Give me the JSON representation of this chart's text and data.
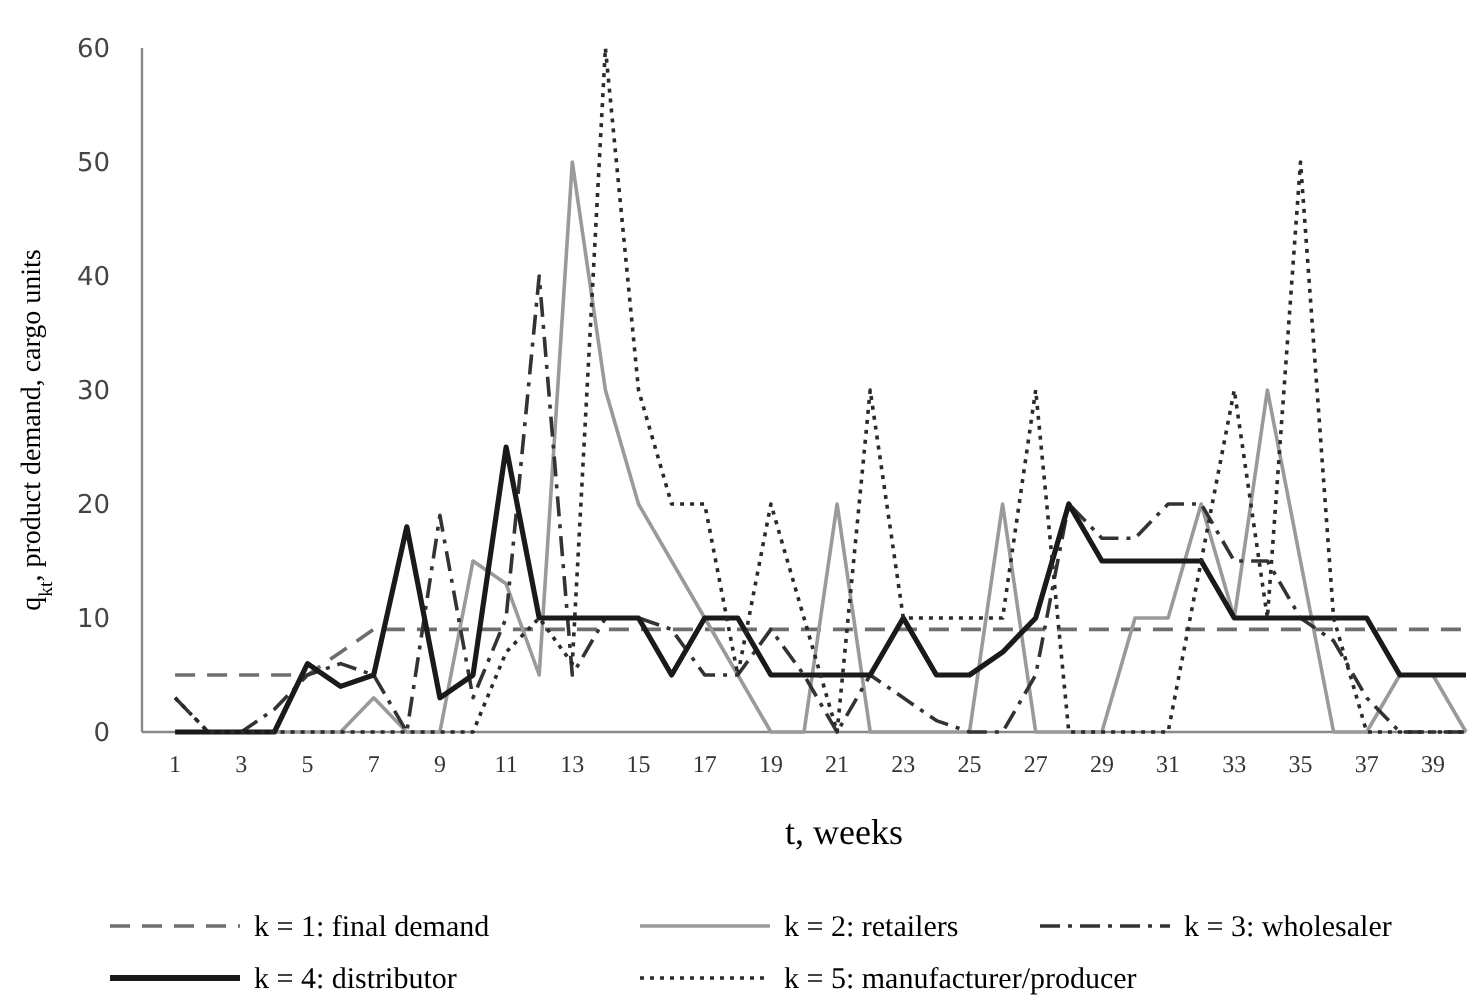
{
  "chart_data": {
    "type": "line",
    "xlabel": "t, weeks",
    "ylabel": "q$_{kt}$, product demand, cargo units",
    "x": [
      1,
      2,
      3,
      4,
      5,
      6,
      7,
      8,
      9,
      10,
      11,
      12,
      13,
      14,
      15,
      16,
      17,
      18,
      19,
      20,
      21,
      22,
      23,
      24,
      25,
      26,
      27,
      28,
      29,
      30,
      31,
      32,
      33,
      34,
      35,
      36,
      37,
      38,
      39,
      40
    ],
    "xlim": [
      0,
      40
    ],
    "xticks": [
      1,
      3,
      5,
      7,
      9,
      11,
      13,
      15,
      17,
      19,
      21,
      23,
      25,
      27,
      29,
      31,
      33,
      35,
      37,
      39
    ],
    "ylim": [
      0,
      60
    ],
    "yticks": [
      0,
      10,
      20,
      30,
      40,
      50,
      60
    ],
    "grid": false,
    "legend": "bottom",
    "marker": "none",
    "series": [
      {
        "name": "k = 1: final demand",
        "color": "#6e6e6e",
        "line_style": "dashed",
        "values": [
          5,
          5,
          5,
          5,
          5,
          7,
          9,
          9,
          9,
          9,
          9,
          9,
          9,
          9,
          9,
          9,
          9,
          9,
          9,
          9,
          9,
          9,
          9,
          9,
          9,
          9,
          9,
          9,
          9,
          9,
          9,
          9,
          9,
          9,
          9,
          9,
          9,
          9,
          9,
          9
        ]
      },
      {
        "name": "k = 2: retailers",
        "color": "#9a9a9a",
        "line_style": "solid",
        "values": [
          0,
          0,
          0,
          0,
          0,
          0,
          3,
          0,
          0,
          15,
          13,
          5,
          50,
          30,
          20,
          15,
          10,
          5,
          0,
          0,
          20,
          0,
          0,
          0,
          0,
          20,
          0,
          0,
          0,
          10,
          10,
          20,
          10,
          30,
          15,
          0,
          0,
          5,
          5,
          0
        ]
      },
      {
        "name": "k = 3: wholesaler",
        "color": "#333333",
        "line_style": "dashdot",
        "values": [
          3,
          0,
          0,
          2,
          5,
          6,
          5,
          0,
          19,
          3,
          10,
          40,
          5,
          10,
          10,
          9,
          5,
          5,
          9,
          5,
          0,
          5,
          3,
          1,
          0,
          0,
          5,
          20,
          17,
          17,
          20,
          20,
          15,
          15,
          10,
          8,
          3,
          0,
          0,
          0
        ]
      },
      {
        "name": "k = 4: distributor",
        "color": "#1a1a1a",
        "line_style": "solid",
        "values": [
          0,
          0,
          0,
          0,
          6,
          4,
          5,
          18,
          3,
          5,
          25,
          10,
          10,
          10,
          10,
          5,
          10,
          10,
          5,
          5,
          5,
          5,
          10,
          5,
          5,
          7,
          10,
          20,
          15,
          15,
          15,
          15,
          10,
          10,
          10,
          10,
          10,
          5,
          5,
          5
        ]
      },
      {
        "name": "k = 5: manufacturer/producer",
        "color": "#2a2a2a",
        "line_style": "dotted",
        "values": [
          3,
          0,
          0,
          0,
          0,
          0,
          0,
          0,
          0,
          0,
          7,
          10,
          6,
          60,
          30,
          20,
          20,
          5,
          20,
          10,
          0,
          30,
          10,
          10,
          10,
          10,
          30,
          0,
          0,
          0,
          0,
          15,
          30,
          10,
          50,
          10,
          0,
          0,
          0,
          0
        ]
      }
    ]
  }
}
